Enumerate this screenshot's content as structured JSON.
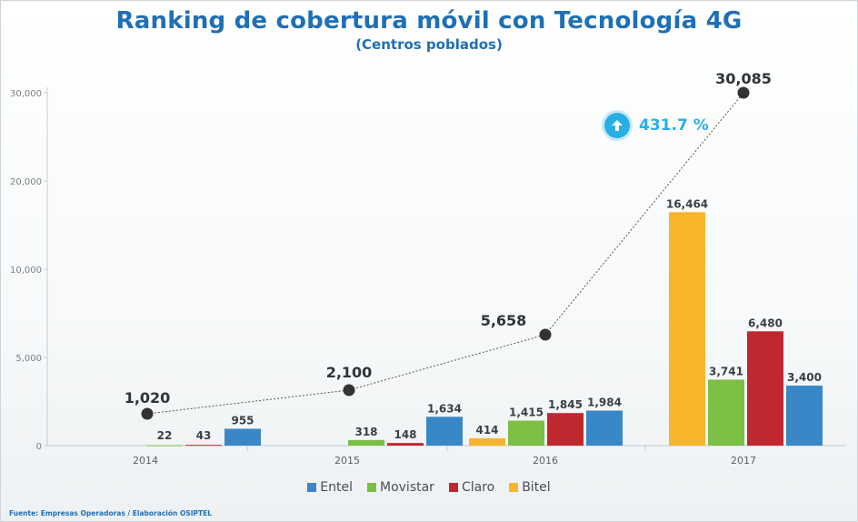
{
  "chart_data": {
    "type": "bar",
    "title": "Ranking de cobertura móvil con Tecnología 4G",
    "subtitle": "(Centros poblados)",
    "categories": [
      "2014",
      "2015",
      "2016",
      "2017"
    ],
    "yticks": [
      "0",
      "5,000",
      "10,000",
      "20,000",
      "30,000"
    ],
    "series": [
      {
        "name": "Entel",
        "color": "#3a87c8",
        "values": [
          955,
          1634,
          1984,
          3400
        ],
        "labels": [
          "955",
          "1,634",
          "1,984",
          "3,400"
        ]
      },
      {
        "name": "Movistar",
        "color": "#7bbf45",
        "values": [
          22,
          318,
          1415,
          3741
        ],
        "labels": [
          "22",
          "318",
          "1,415",
          "3,741"
        ]
      },
      {
        "name": "Claro",
        "color": "#c0282f",
        "values": [
          43,
          148,
          1845,
          6480
        ],
        "labels": [
          "43",
          "148",
          "1,845",
          "6,480"
        ]
      },
      {
        "name": "Bitel",
        "color": "#f7b52c",
        "values": [
          0,
          0,
          414,
          16464
        ],
        "labels": [
          "",
          "",
          "414",
          "16,464"
        ]
      }
    ],
    "total_line": {
      "values": [
        1020,
        2100,
        5658,
        30085
      ],
      "labels": [
        "1,020",
        "2,100",
        "5,658",
        "30,085"
      ]
    },
    "growth_annotation": "431.7 %",
    "legend_position": "bottom",
    "grid": false
  },
  "source": "Fuente: Empresas Operadoras / Elaboración OSIPTEL",
  "colors": {
    "title": "#1f6fb5",
    "growth": "#27aee4",
    "point": "#333333"
  }
}
